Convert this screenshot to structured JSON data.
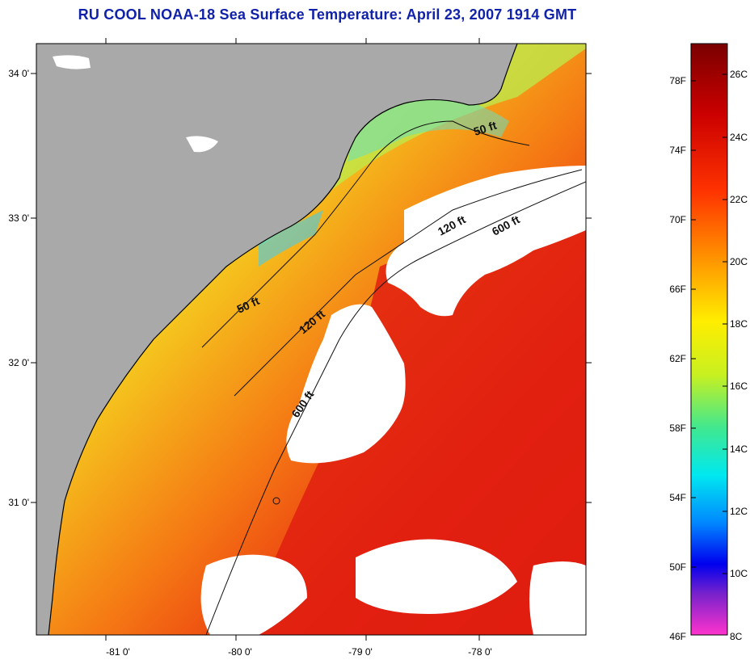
{
  "title": "RU COOL  NOAA-18  Sea Surface Temperature:  April 23, 2007 1914 GMT",
  "map": {
    "lat_labels": [
      "34 0'",
      "33 0'",
      "32 0'",
      "31 0'"
    ],
    "lon_labels": [
      "-81 0'",
      "-80 0'",
      "-79 0'",
      "-78 0'"
    ],
    "contours": [
      "50 ft",
      "120 ft",
      "600 ft",
      "50 ft",
      "120 ft",
      "600 ft"
    ],
    "colors": {
      "land": "#a9a9a9",
      "cloud": "#ffffff",
      "coast": "#000000"
    }
  },
  "colorbar": {
    "fahrenheit_labels": [
      "78F",
      "74F",
      "70F",
      "66F",
      "62F",
      "58F",
      "54F",
      "50F",
      "46F"
    ],
    "celsius_labels": [
      "26C",
      "24C",
      "22C",
      "20C",
      "18C",
      "16C",
      "14C",
      "12C",
      "10C",
      "8C"
    ]
  }
}
